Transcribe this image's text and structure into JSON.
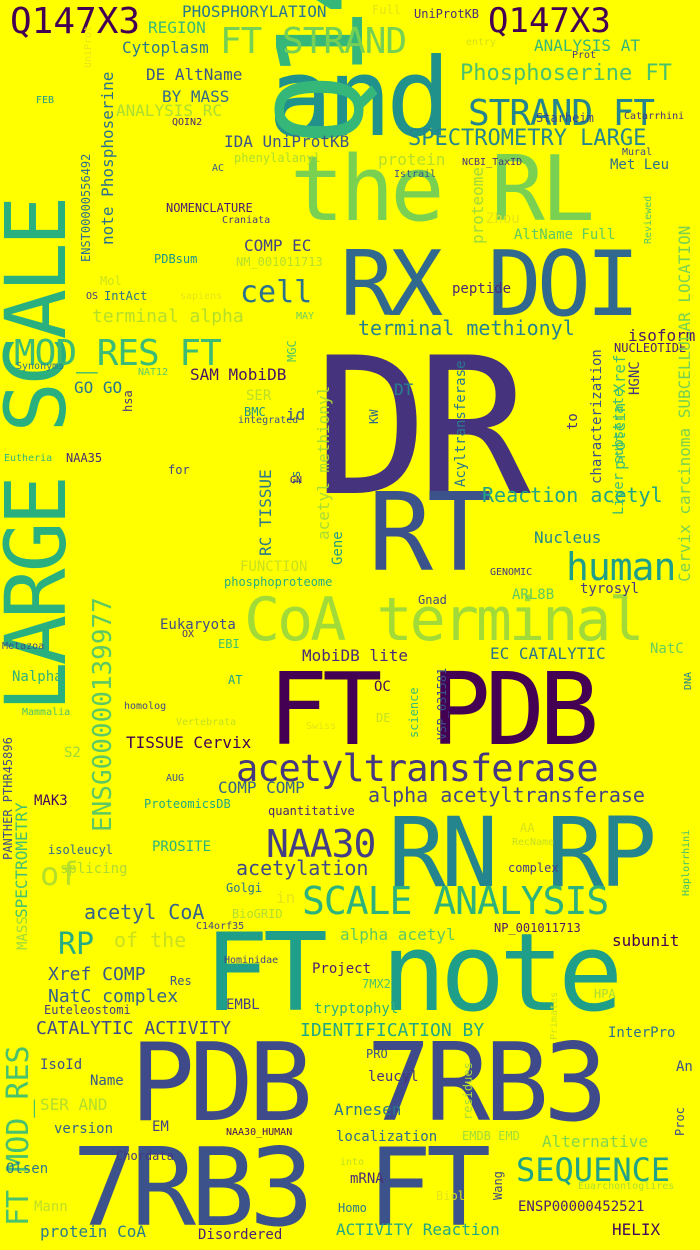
{
  "background": "#ffff00",
  "words": [
    {
      "t": "DR",
      "c": "#46337e"
    },
    {
      "t": "FT note",
      "c": "#1f9e89"
    },
    {
      "t": "PDB 7RB3",
      "c": "#3e4a89"
    },
    {
      "t": "7RB3 FT",
      "c": "#3b528b"
    },
    {
      "t": "FT PDB",
      "c": "#440154"
    },
    {
      "t": "RN RP",
      "c": "#25858e"
    },
    {
      "t": "RX DOI",
      "c": "#31688e"
    },
    {
      "t": "and",
      "c": "#21918c"
    },
    {
      "t": "the RL",
      "c": "#7ad151"
    },
    {
      "t": "RT",
      "c": "#3b528b"
    },
    {
      "t": "Q147X3",
      "c": "#35b779"
    },
    {
      "t": "LARGE SCALE",
      "c": "#2ab07f"
    },
    {
      "t": "CoA terminal",
      "c": "#a2da37"
    },
    {
      "t": "acetyltransferase",
      "c": "#453781"
    },
    {
      "t": "Q147X3",
      "c": "#440154"
    },
    {
      "t": "FT STRAND",
      "c": "#75d054"
    },
    {
      "t": "STRAND FT",
      "c": "#25858e"
    },
    {
      "t": "MOD_RES FT",
      "c": "#3bbb75"
    },
    {
      "t": "SCALE ANALYSIS",
      "c": "#2db27d"
    },
    {
      "t": "NAA30",
      "c": "#433e85"
    },
    {
      "t": "human",
      "c": "#1f9e89"
    },
    {
      "t": "SEQUENCE",
      "c": "#20a386"
    },
    {
      "t": "ENSG00000139977",
      "c": "#5ec962"
    },
    {
      "t": "FT MOD_RES",
      "c": "#4ac16d"
    },
    {
      "t": "cell",
      "c": "#2c718e"
    },
    {
      "t": "Phosphoserine FT",
      "c": "#4ac16d"
    },
    {
      "t": "SPECTROMETRY LARGE",
      "c": "#24868e"
    },
    {
      "t": "terminal methionyl",
      "c": "#26828e"
    },
    {
      "t": "Reaction acetyl",
      "c": "#20a386"
    },
    {
      "t": "alpha acetyltransferase",
      "c": "#404688"
    },
    {
      "t": "acetylation",
      "c": "#3e4a89"
    },
    {
      "t": "acetyl CoA",
      "c": "#34618d"
    },
    {
      "t": "RP",
      "c": "#27ad81"
    },
    {
      "t": "of",
      "c": "#b5de2b"
    },
    {
      "t": "of the",
      "c": "#c8e020"
    },
    {
      "t": "IDENTIFICATION BY",
      "c": "#22a884"
    },
    {
      "t": "CATALYTIC ACTIVITY",
      "c": "#3e4989"
    },
    {
      "t": "Xref COMP",
      "c": "#38588c"
    },
    {
      "t": "NatC complex",
      "c": "#33638d"
    },
    {
      "t": "Q147X3",
      "c": "#440154"
    },
    {
      "t": "PHOSPHORYLATION",
      "c": "#2a788e"
    },
    {
      "t": "REGION",
      "c": "#3aba76"
    },
    {
      "t": "Cytoplasm",
      "c": "#2a788e"
    },
    {
      "t": "DE AltName",
      "c": "#39568c"
    },
    {
      "t": "BY MASS",
      "c": "#31688e"
    },
    {
      "t": "ANALYSIS RC",
      "c": "#aadc32"
    },
    {
      "t": "IDA UniProtKB",
      "c": "#39558c"
    },
    {
      "t": "note Phosphoserine",
      "c": "#2c728e"
    },
    {
      "t": "COMP EC",
      "c": "#414487"
    },
    {
      "t": "GO GO",
      "c": "#2a768e"
    },
    {
      "t": "SAM MobiDB",
      "c": "#471365"
    },
    {
      "t": "terminal alpha",
      "c": "#b5de2b"
    },
    {
      "t": "ANALYSIS AT",
      "c": "#35b779"
    },
    {
      "t": "Met Leu",
      "c": "#2d708e"
    },
    {
      "t": "AltName Full",
      "c": "#5ec962"
    },
    {
      "t": "peptide",
      "c": "#482878"
    },
    {
      "t": "isoform",
      "c": "#481a6c"
    },
    {
      "t": "NUCLEOTIDE",
      "c": "#482173"
    },
    {
      "t": "protein Xref",
      "c": "#46c06f"
    },
    {
      "t": "HGNC",
      "c": "#453882"
    },
    {
      "t": "Cervix carcinoma SUBCELLULAR LOCATION",
      "c": "#7ad151"
    },
    {
      "t": "Liver substrate",
      "c": "#3bbb75"
    },
    {
      "t": "characterization",
      "c": "#3b528b"
    },
    {
      "t": "Acyltransferase",
      "c": "#2a788e"
    },
    {
      "t": "to",
      "c": "#453781"
    },
    {
      "t": "DT",
      "c": "#27808e"
    },
    {
      "t": "id",
      "c": "#39568c"
    },
    {
      "t": "is",
      "c": "#2c728e"
    },
    {
      "t": "KW",
      "c": "#2f6c8e"
    },
    {
      "t": "Gene",
      "c": "#1f998a"
    },
    {
      "t": "acetyl methionyl",
      "c": "#a8db34"
    },
    {
      "t": "RC TISSUE",
      "c": "#2a788e"
    },
    {
      "t": "Nucleus",
      "c": "#24878e"
    },
    {
      "t": "tyrosyl",
      "c": "#443983"
    },
    {
      "t": "ARL8B",
      "c": "#5ec962"
    },
    {
      "t": "Gnad",
      "c": "#3f4889"
    },
    {
      "t": "EC CATALYTIC",
      "c": "#2b748e"
    },
    {
      "t": "NatC",
      "c": "#69cd5b"
    },
    {
      "t": "MobiDB lite",
      "c": "#472c7a"
    },
    {
      "t": "OC",
      "c": "#460b5e"
    },
    {
      "t": "VSP_031581",
      "c": "#3b528b"
    },
    {
      "t": "science",
      "c": "#3bbb75"
    },
    {
      "t": "phosphoproteome",
      "c": "#27ad81"
    },
    {
      "t": "FUNCTION",
      "c": "#c8e020"
    },
    {
      "t": "Eukaryota",
      "c": "#3e4c8a"
    },
    {
      "t": "EBI",
      "c": "#3dbc74"
    },
    {
      "t": "AT",
      "c": "#1fa188"
    },
    {
      "t": "Nalpha",
      "c": "#2db27d"
    },
    {
      "t": "TISSUE Cervix",
      "c": "#440154"
    },
    {
      "t": "COMP COMP",
      "c": "#33638d"
    },
    {
      "t": "MAK3",
      "c": "#46085c"
    },
    {
      "t": "PROSITE",
      "c": "#2db27d"
    },
    {
      "t": "ProteomicsDB",
      "c": "#22a884"
    },
    {
      "t": "quantitative",
      "c": "#482677"
    },
    {
      "t": "isoleucyl",
      "c": "#2f6b8e"
    },
    {
      "t": "splicing",
      "c": "#addc30"
    },
    {
      "t": "Golgi",
      "c": "#2c738e"
    },
    {
      "t": "BioGRID",
      "c": "#b0dd2f"
    },
    {
      "t": "C14orf35",
      "c": "#404688"
    },
    {
      "t": "alpha acetyl",
      "c": "#5ec962"
    },
    {
      "t": "NP_001011713",
      "c": "#481a6c"
    },
    {
      "t": "subunit",
      "c": "#440154"
    },
    {
      "t": "complex",
      "c": "#433e85"
    },
    {
      "t": "Hominidae",
      "c": "#3f4788"
    },
    {
      "t": "Project",
      "c": "#481f70"
    },
    {
      "t": "7MX2",
      "c": "#4ac16d"
    },
    {
      "t": "EMBL",
      "c": "#424086"
    },
    {
      "t": "tryptophyl",
      "c": "#2ab07f"
    },
    {
      "t": "HPA",
      "c": "#a5db36"
    },
    {
      "t": "InterPro",
      "c": "#2c718e"
    },
    {
      "t": "Res",
      "c": "#3a538b"
    },
    {
      "t": "Euteleostomi",
      "c": "#424186"
    },
    {
      "t": "IsoId",
      "c": "#3b528b"
    },
    {
      "t": "Name",
      "c": "#38598c"
    },
    {
      "t": "SER AND",
      "c": "#b2dd2d"
    },
    {
      "t": "version",
      "c": "#33638d"
    },
    {
      "t": "EM",
      "c": "#424086"
    },
    {
      "t": "PRO",
      "c": "#3b528b"
    },
    {
      "t": "leucyl",
      "c": "#453581"
    },
    {
      "t": "Arnesen",
      "c": "#2a768e"
    },
    {
      "t": "localization",
      "c": "#2f6c8e"
    },
    {
      "t": "EMDB EMD",
      "c": "#a0da39"
    },
    {
      "t": "Alternative",
      "c": "#84d44b"
    },
    {
      "t": "Olsen",
      "c": "#2a788e"
    },
    {
      "t": "Mann",
      "c": "#bddf26"
    },
    {
      "t": "protein CoA",
      "c": "#287c8e"
    },
    {
      "t": "Disordered",
      "c": "#482475"
    },
    {
      "t": "ACTIVITY Reaction",
      "c": "#22a884"
    },
    {
      "t": "HELIX",
      "c": "#460a5d"
    },
    {
      "t": "ENSP00000452521",
      "c": "#482173"
    },
    {
      "t": "mRNA",
      "c": "#472d7b"
    },
    {
      "t": "Homo",
      "c": "#2a788e"
    },
    {
      "t": "Wang",
      "c": "#3f4788"
    },
    {
      "t": "SPECTROMETRY",
      "c": "#46c06f"
    },
    {
      "t": "MASS",
      "c": "#a0da39"
    },
    {
      "t": "PANTHER PTHR45896",
      "c": "#3e4c8a"
    },
    {
      "t": "S2",
      "c": "#9bd93c"
    },
    {
      "t": "AUG",
      "c": "#3b528b"
    },
    {
      "t": "homolog",
      "c": "#3e4989"
    },
    {
      "t": "Metazoa",
      "c": "#3c4f8a"
    },
    {
      "t": "Mammalia",
      "c": "#4ac16d"
    },
    {
      "t": "Vertebrata",
      "c": "#c2df23"
    },
    {
      "t": "Swiss",
      "c": "#e2e418"
    },
    {
      "t": "DE",
      "c": "#c5e021"
    },
    {
      "t": "OX",
      "c": "#46327e"
    },
    {
      "t": "NAA35",
      "c": "#472c7a"
    },
    {
      "t": "Eutheria",
      "c": "#35b779"
    },
    {
      "t": "hsa",
      "c": "#453882"
    },
    {
      "t": "Synonyms",
      "c": "#2a788e"
    },
    {
      "t": "NAT12",
      "c": "#5ec962"
    },
    {
      "t": "BMC",
      "c": "#21918c"
    },
    {
      "t": "SER",
      "c": "#b8de29"
    },
    {
      "t": "integrated",
      "c": "#3b528b"
    },
    {
      "t": "for",
      "c": "#3e4989"
    },
    {
      "t": "GN",
      "c": "#482475"
    },
    {
      "t": "MGC",
      "c": "#54c568"
    },
    {
      "t": "MAY",
      "c": "#6ccd5a"
    },
    {
      "t": "IntAct",
      "c": "#2c728e"
    },
    {
      "t": "OS",
      "c": "#433e85"
    },
    {
      "t": "sapiens",
      "c": "#e5e419"
    },
    {
      "t": "Mol",
      "c": "#cae11f"
    },
    {
      "t": "PDBsum",
      "c": "#1f968b"
    },
    {
      "t": "NM_001011713",
      "c": "#b5de2b"
    },
    {
      "t": "Craniata",
      "c": "#443a83"
    },
    {
      "t": "NOMENCLATURE",
      "c": "#481f70"
    },
    {
      "t": "phenylalanyl",
      "c": "#addc30"
    },
    {
      "t": "AC",
      "c": "#355f8d"
    },
    {
      "t": "ENST00000556492",
      "c": "#2c718e"
    },
    {
      "t": "FEB",
      "c": "#1f9e89"
    },
    {
      "t": "QOIN2",
      "c": "#482878"
    },
    {
      "t": "UniProt",
      "c": "#e7e419"
    },
    {
      "t": "Full",
      "c": "#e2e418"
    },
    {
      "t": "UniProtKB",
      "c": "#46307e"
    },
    {
      "t": "entry",
      "c": "#d5e21a"
    },
    {
      "t": "Prot",
      "c": "#443b84"
    },
    {
      "t": "Starheim",
      "c": "#3f4788"
    },
    {
      "t": "Catarrhini",
      "c": "#46337e"
    },
    {
      "t": "Mural",
      "c": "#3e4a89"
    },
    {
      "t": "NCBI_TaxID",
      "c": "#46327e"
    },
    {
      "t": "Istrail",
      "c": "#39558c"
    },
    {
      "t": "protein",
      "c": "#b5de2b"
    },
    {
      "t": "proteome",
      "c": "#a0da39"
    },
    {
      "t": "Zhou",
      "c": "#e5e419"
    },
    {
      "t": "Reviewed",
      "c": "#54c568"
    },
    {
      "t": "GENOMIC",
      "c": "#443983"
    },
    {
      "t": "DNA",
      "c": "#27808e"
    },
    {
      "t": "AA",
      "c": "#d8e219"
    },
    {
      "t": "RecName",
      "c": "#c2df23"
    },
    {
      "t": "Haplorrhini",
      "c": "#3dbc74"
    },
    {
      "t": "Primates",
      "c": "#cae11f"
    },
    {
      "t": "residues",
      "c": "#a8db34"
    },
    {
      "t": "Biol",
      "c": "#e2e418"
    },
    {
      "t": "into",
      "c": "#bddf26"
    },
    {
      "t": "in",
      "c": "#e5e419"
    },
    {
      "t": "NAA30_HUMAN",
      "c": "#460b5e"
    },
    {
      "t": "Proc",
      "c": "#3b528b"
    },
    {
      "t": "An",
      "c": "#3b528b"
    },
    {
      "t": "Euarchontoglires",
      "c": "#addc30"
    },
    {
      "t": "Chordata",
      "c": "#453882"
    }
  ]
}
